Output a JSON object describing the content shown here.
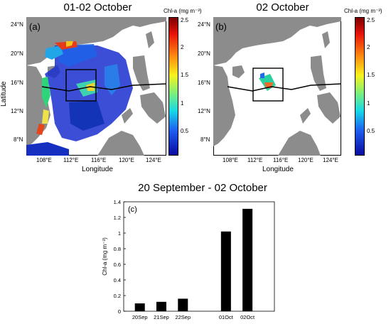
{
  "panel_a": {
    "title": "01-02 October",
    "letter": "(a)",
    "xlabel": "Longitude",
    "ylabel": "Latitude",
    "yticks": [
      "24°N",
      "20°N",
      "16°N",
      "12°N",
      "8°N"
    ],
    "xticks": [
      "108°E",
      "112°E",
      "116°E",
      "120°E",
      "124°E"
    ],
    "colorbar_title": "Chl-a (mg m⁻³)",
    "colorbar_ticks": [
      "2.5",
      "2",
      "1.5",
      "1",
      "0.5"
    ]
  },
  "panel_b": {
    "title": "02 October",
    "letter": "(b)",
    "xlabel": "Longitude",
    "yticks": [
      "24°N",
      "20°N",
      "16°N",
      "12°N",
      "8°N"
    ],
    "xticks": [
      "108°E",
      "112°E",
      "116°E",
      "120°E",
      "124°E"
    ],
    "colorbar_title": "Chl-a (mg m⁻³)",
    "colorbar_ticks": [
      "2.5",
      "2",
      "1.5",
      "1",
      "0.5"
    ]
  },
  "panel_c": {
    "title": "20 September - 02 October",
    "letter": "(c)",
    "ylabel": "Chl-a (mg m⁻³)"
  },
  "colors": {
    "land": "#8c8c8c",
    "bar": "#000000",
    "track": "#000000"
  },
  "chart_data": {
    "type": "bar",
    "categories": [
      "20Sep",
      "21Sep",
      "22Sep",
      "",
      "01Oct",
      "02Oct"
    ],
    "values": [
      0.1,
      0.12,
      0.16,
      null,
      1.02,
      1.31
    ],
    "title": "20 September - 02 October",
    "xlabel": "",
    "ylabel": "Chl-a (mg m⁻³)",
    "ylim": [
      0,
      1.4
    ],
    "yticks": [
      0,
      0.2,
      0.4,
      0.6,
      0.8,
      1,
      1.2,
      1.4
    ],
    "grid": false
  }
}
